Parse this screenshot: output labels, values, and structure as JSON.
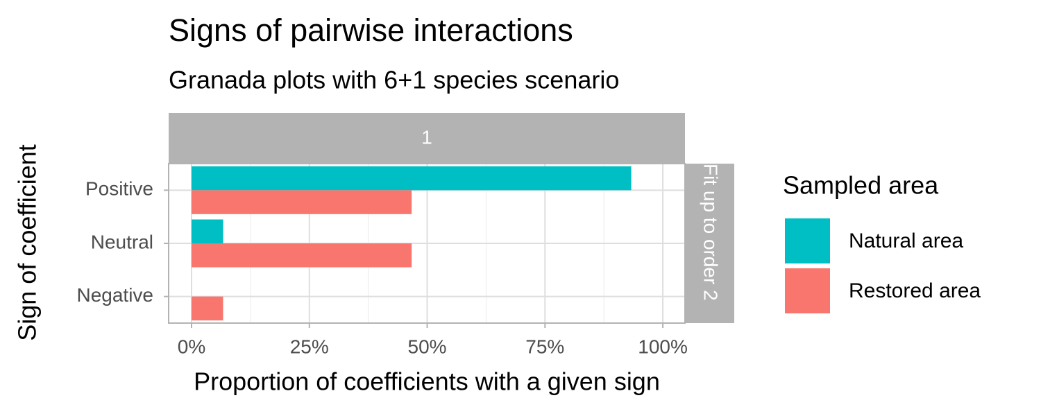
{
  "chart_data": {
    "type": "bar",
    "orientation": "horizontal",
    "title": "Signs of pairwise interactions",
    "subtitle": "Granada plots with 6+1 species scenario",
    "facet_top": "1",
    "facet_right": "Fit up to order 2",
    "x_label": "Proportion of coefficients with a given sign",
    "y_label": "Sign of coefficient",
    "legend_title": "Sampled area",
    "categories": [
      "Positive",
      "Neutral",
      "Negative"
    ],
    "series": [
      {
        "name": "Natural area",
        "color": "#00bfc4",
        "values": [
          93.3,
          6.7,
          0
        ]
      },
      {
        "name": "Restored area",
        "color": "#f8766d",
        "values": [
          46.7,
          46.7,
          6.7
        ]
      }
    ],
    "xlim": [
      -4.86,
      104.7
    ],
    "xticks": [
      {
        "value": 0,
        "label": "0%"
      },
      {
        "value": 25,
        "label": "25%"
      },
      {
        "value": 50,
        "label": "50%"
      },
      {
        "value": 75,
        "label": "75%"
      },
      {
        "value": 100,
        "label": "100%"
      }
    ],
    "grid": true
  }
}
